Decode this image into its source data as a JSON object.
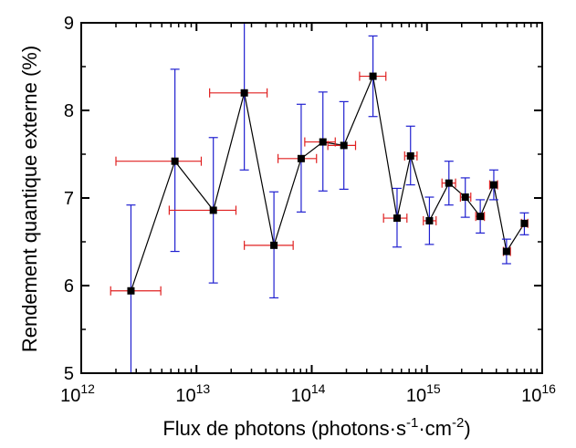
{
  "chart_data": {
    "type": "scatter",
    "xlabel": "Flux de photons (photons·s⁻¹·cm⁻²)",
    "xlabel_parts": {
      "base": "Flux de photons (photons·s",
      "exp1": "-1",
      "mid": "·cm",
      "exp2": "-2",
      "end": ")"
    },
    "ylabel": "Rendement quantique externe (%)",
    "x_scale": "log",
    "xlim": [
      1000000000000.0,
      1e+16
    ],
    "ylim": [
      5,
      9
    ],
    "x_ticks": [
      {
        "value": 1000000000000.0,
        "base": "10",
        "exp": "12"
      },
      {
        "value": 10000000000000.0,
        "base": "10",
        "exp": "13"
      },
      {
        "value": 100000000000000.0,
        "base": "10",
        "exp": "14"
      },
      {
        "value": 1000000000000000.0,
        "base": "10",
        "exp": "15"
      },
      {
        "value": 1e+16,
        "base": "10",
        "exp": "16"
      }
    ],
    "y_ticks": [
      "5",
      "6",
      "7",
      "8",
      "9"
    ],
    "grid": false,
    "series": [
      {
        "line_color": "#000000",
        "marker_color": "#000000",
        "xerr_color": "#e02020",
        "yerr_color": "#2020d0",
        "points": [
          {
            "x": 2700000000000.0,
            "y": 5.94,
            "xmin": 1800000000000.0,
            "xmax": 4900000000000.0,
            "ymin": 5.0,
            "ymax": 6.92
          },
          {
            "x": 6500000000000.0,
            "y": 7.42,
            "xmin": 2000000000000.0,
            "xmax": 11000000000000.0,
            "ymin": 6.39,
            "ymax": 8.47
          },
          {
            "x": 14000000000000.0,
            "y": 6.86,
            "xmin": 5800000000000.0,
            "xmax": 22000000000000.0,
            "ymin": 6.03,
            "ymax": 7.69
          },
          {
            "x": 26000000000000.0,
            "y": 8.2,
            "xmin": 13000000000000.0,
            "xmax": 41000000000000.0,
            "ymin": 7.32,
            "ymax": 9.0
          },
          {
            "x": 47000000000000.0,
            "y": 6.46,
            "xmin": 26000000000000.0,
            "xmax": 69000000000000.0,
            "ymin": 5.86,
            "ymax": 7.07
          },
          {
            "x": 81000000000000.0,
            "y": 7.45,
            "xmin": 51000000000000.0,
            "xmax": 110000000000000.0,
            "ymin": 6.84,
            "ymax": 8.07
          },
          {
            "x": 125000000000000.0,
            "y": 7.64,
            "xmin": 87000000000000.0,
            "xmax": 160000000000000.0,
            "ymin": 7.08,
            "ymax": 8.21
          },
          {
            "x": 190000000000000.0,
            "y": 7.6,
            "xmin": 138000000000000.0,
            "xmax": 240000000000000.0,
            "ymin": 7.1,
            "ymax": 8.1
          },
          {
            "x": 340000000000000.0,
            "y": 8.39,
            "xmin": 260000000000000.0,
            "xmax": 440000000000000.0,
            "ymin": 7.93,
            "ymax": 8.85
          },
          {
            "x": 550000000000000.0,
            "y": 6.77,
            "xmin": 420000000000000.0,
            "xmax": 670000000000000.0,
            "ymin": 6.44,
            "ymax": 7.11
          },
          {
            "x": 720000000000000.0,
            "y": 7.48,
            "xmin": 640000000000000.0,
            "xmax": 820000000000000.0,
            "ymin": 7.15,
            "ymax": 7.82
          },
          {
            "x": 1050000000000000.0,
            "y": 6.74,
            "xmin": 930000000000000.0,
            "xmax": 1200000000000000.0,
            "ymin": 6.47,
            "ymax": 7.01
          },
          {
            "x": 1550000000000000.0,
            "y": 7.17,
            "xmin": 1350000000000000.0,
            "xmax": 1770000000000000.0,
            "ymin": 6.92,
            "ymax": 7.42
          },
          {
            "x": 2150000000000000.0,
            "y": 7.01,
            "xmin": 1950000000000000.0,
            "xmax": 2400000000000000.0,
            "ymin": 6.78,
            "ymax": 7.23
          },
          {
            "x": 2900000000000000.0,
            "y": 6.79,
            "xmin": 2650000000000000.0,
            "xmax": 3150000000000000.0,
            "ymin": 6.6,
            "ymax": 6.98
          },
          {
            "x": 3800000000000000.0,
            "y": 7.15,
            "xmin": 3500000000000000.0,
            "xmax": 4100000000000000.0,
            "ymin": 6.98,
            "ymax": 7.32
          },
          {
            "x": 4900000000000000.0,
            "y": 6.39,
            "xmin": 4600000000000000.0,
            "xmax": 5300000000000000.0,
            "ymin": 6.25,
            "ymax": 6.53
          },
          {
            "x": 7000000000000000.0,
            "y": 6.71,
            "xmin": 6600000000000000.0,
            "xmax": 7500000000000000.0,
            "ymin": 6.58,
            "ymax": 6.83
          }
        ]
      }
    ]
  }
}
